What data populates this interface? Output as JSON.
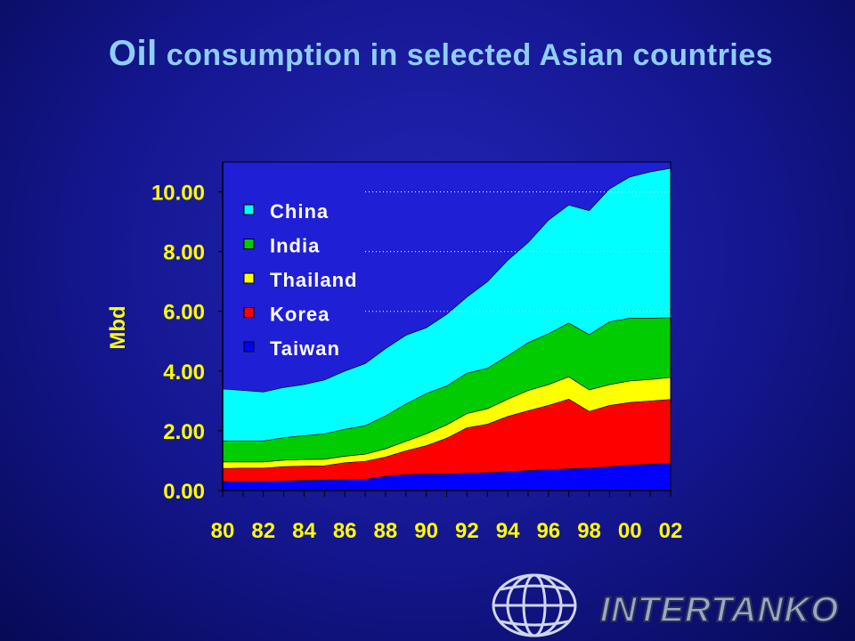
{
  "title": {
    "lead": "Oil",
    "rest": " consumption in selected Asian countries"
  },
  "brand": "INTERTANKO",
  "colors": {
    "plot_bg": "#1f1fd6",
    "axis_text": "#ffff00",
    "legend_text": "#ffffff",
    "China": "#00ffff",
    "India": "#00cc00",
    "Thailand": "#ffff00",
    "Korea": "#ff0000",
    "Taiwan": "#0000ff"
  },
  "chart_data": {
    "type": "area",
    "stacked": true,
    "ylabel": "Mbd",
    "xlabel": "",
    "ylim": [
      0,
      11
    ],
    "yticks": [
      0,
      2,
      4,
      6,
      8,
      10
    ],
    "ytick_labels": [
      "0.00",
      "2.00",
      "4.00",
      "6.00",
      "8.00",
      "10.00"
    ],
    "xtick_labels": [
      "80",
      "82",
      "84",
      "86",
      "88",
      "90",
      "92",
      "94",
      "96",
      "98",
      "00",
      "02"
    ],
    "x": [
      "80",
      "81",
      "82",
      "83",
      "84",
      "85",
      "86",
      "87",
      "88",
      "89",
      "90",
      "91",
      "92",
      "93",
      "94",
      "95",
      "96",
      "97",
      "98",
      "99",
      "00",
      "01",
      "02"
    ],
    "grid": "horizontal dotted at 6, 8, 10",
    "legend_position": "top-left",
    "legend": [
      "China",
      "India",
      "Thailand",
      "Korea",
      "Taiwan"
    ],
    "series": [
      {
        "name": "Taiwan",
        "values": [
          0.3,
          0.3,
          0.3,
          0.32,
          0.34,
          0.35,
          0.36,
          0.38,
          0.48,
          0.53,
          0.55,
          0.55,
          0.58,
          0.6,
          0.63,
          0.67,
          0.7,
          0.73,
          0.75,
          0.8,
          0.85,
          0.88,
          0.9
        ]
      },
      {
        "name": "Korea",
        "values": [
          0.44,
          0.45,
          0.45,
          0.48,
          0.48,
          0.48,
          0.57,
          0.6,
          0.64,
          0.8,
          0.95,
          1.2,
          1.52,
          1.62,
          1.85,
          2.0,
          2.15,
          2.33,
          1.9,
          2.05,
          2.1,
          2.12,
          2.15
        ]
      },
      {
        "name": "Thailand",
        "values": [
          0.22,
          0.21,
          0.21,
          0.22,
          0.22,
          0.22,
          0.22,
          0.24,
          0.28,
          0.32,
          0.4,
          0.45,
          0.48,
          0.52,
          0.58,
          0.68,
          0.7,
          0.75,
          0.72,
          0.7,
          0.72,
          0.72,
          0.74
        ]
      },
      {
        "name": "India",
        "values": [
          0.7,
          0.7,
          0.7,
          0.75,
          0.8,
          0.85,
          0.9,
          0.95,
          1.1,
          1.25,
          1.35,
          1.3,
          1.35,
          1.35,
          1.45,
          1.6,
          1.7,
          1.8,
          1.85,
          2.1,
          2.1,
          2.05,
          2.0
        ]
      },
      {
        "name": "China",
        "values": [
          1.74,
          1.69,
          1.64,
          1.68,
          1.71,
          1.8,
          1.95,
          2.08,
          2.25,
          2.3,
          2.2,
          2.4,
          2.55,
          2.9,
          3.2,
          3.35,
          3.8,
          3.95,
          4.15,
          4.45,
          4.73,
          4.9,
          5.0
        ]
      }
    ]
  }
}
